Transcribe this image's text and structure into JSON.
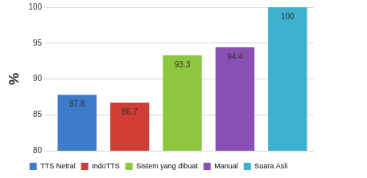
{
  "chart_data": {
    "type": "bar",
    "y_label": "%",
    "categories": [
      "TTS Netral",
      "IndoTTS",
      "Sistem yang dibuat",
      "Manual",
      "Suara Asli"
    ],
    "values": [
      87.8,
      86.7,
      93.3,
      94.4,
      100
    ],
    "colors": [
      "#3d7cc9",
      "#cf3d35",
      "#8dc63f",
      "#8a4fb3",
      "#3db2d0"
    ],
    "ylim": [
      80,
      100
    ],
    "yticks": [
      80,
      85,
      90,
      95,
      100
    ],
    "grid": true,
    "legend": "bottom",
    "data_labels": true,
    "tick_labels": "y"
  }
}
